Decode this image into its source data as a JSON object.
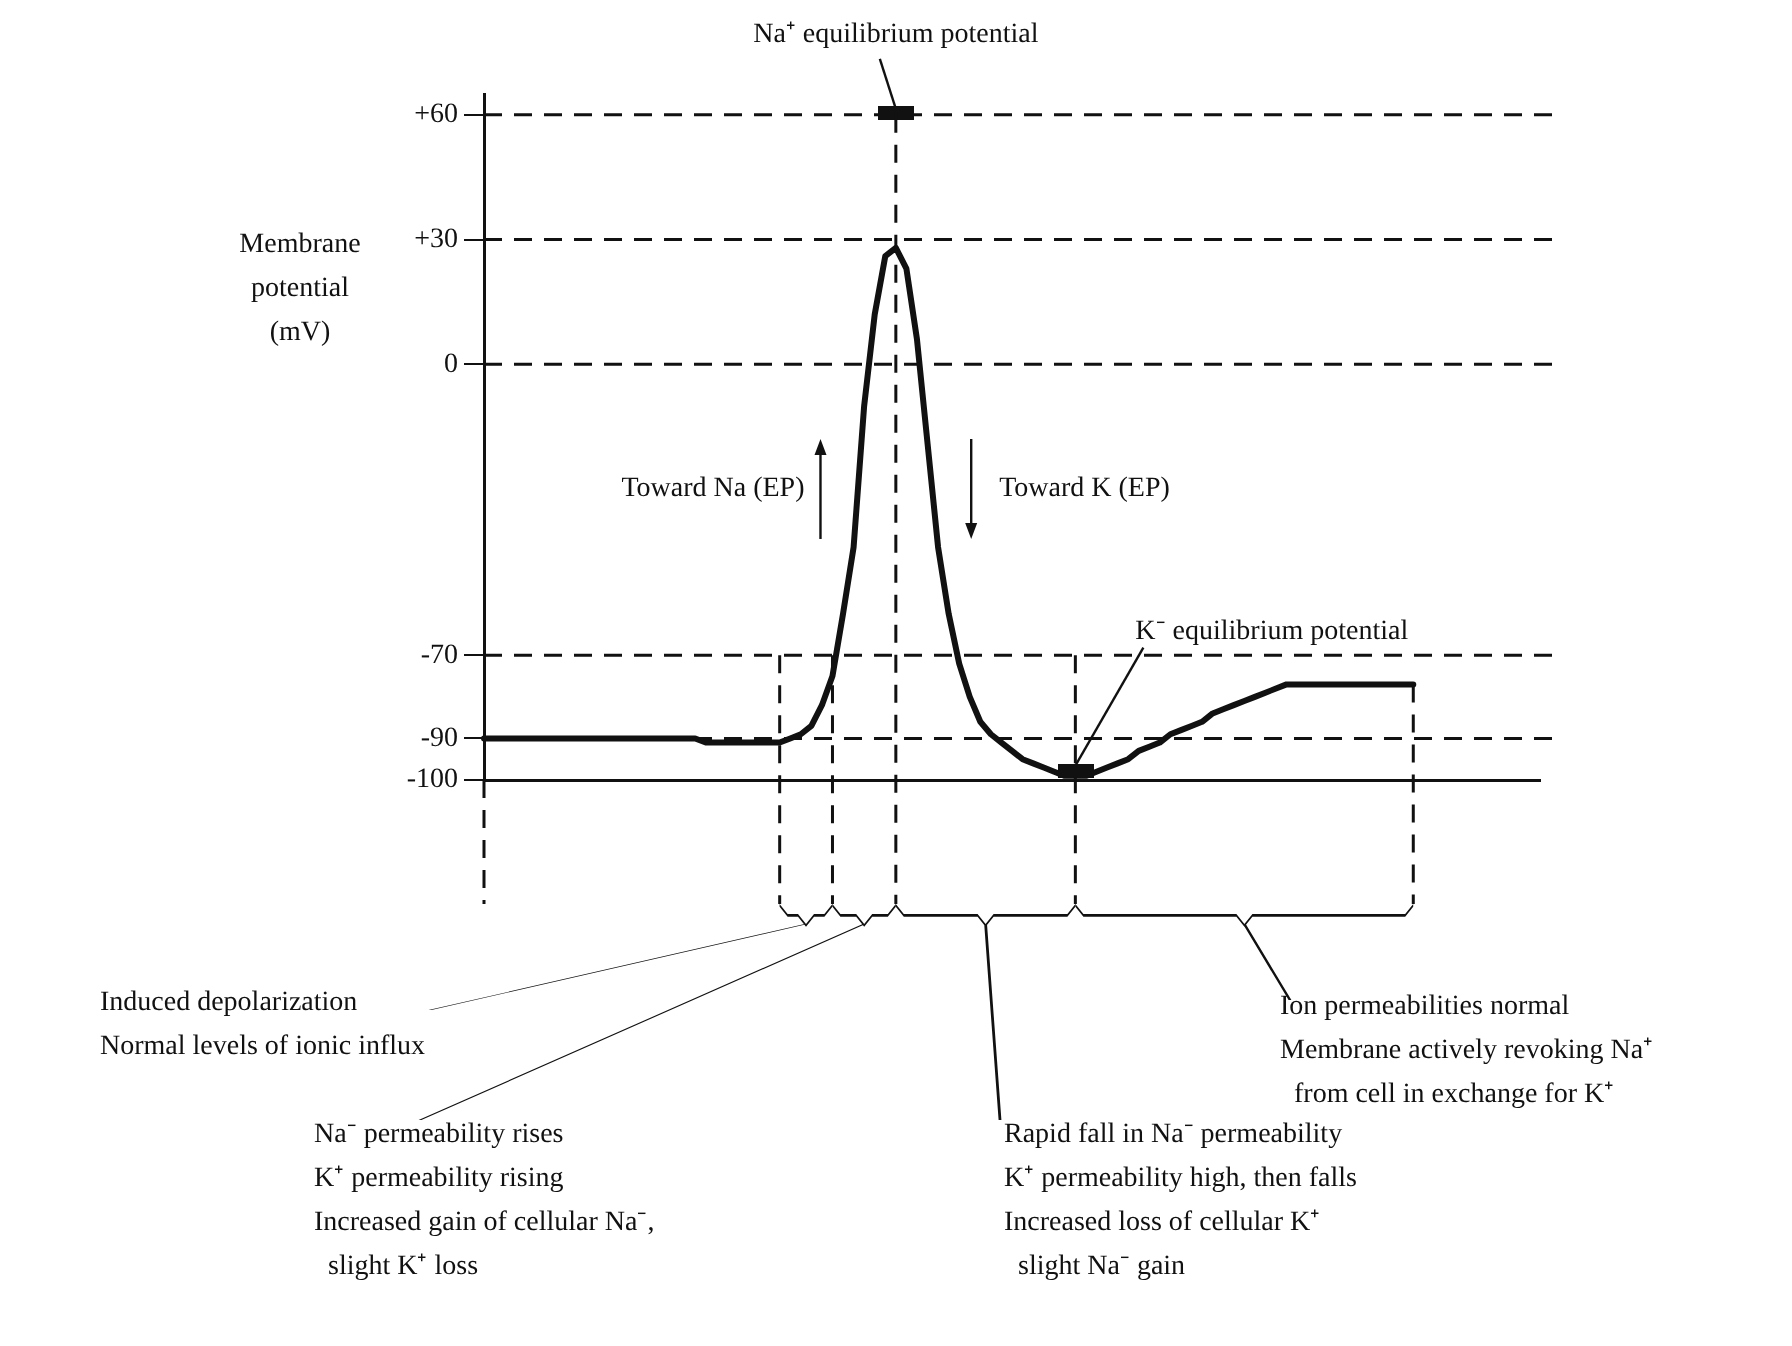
{
  "chart_data": {
    "type": "line",
    "ylabel": "Membrane potential (mV)",
    "tick_labels": "y",
    "legend": false,
    "grid": false,
    "marker": "none",
    "line_style": "solid",
    "categories": [
      null,
      null,
      null,
      null,
      null,
      null,
      null,
      null,
      null,
      null,
      null,
      null,
      null,
      null,
      null,
      null,
      null,
      null,
      null,
      null,
      null,
      null,
      null,
      null,
      null,
      null,
      null,
      null,
      null,
      null,
      null,
      null,
      null,
      null,
      null,
      null,
      null,
      null,
      null,
      null,
      null,
      null,
      null,
      null,
      null,
      null,
      null,
      null,
      null,
      null,
      null,
      null,
      null,
      null,
      null,
      null,
      null,
      null,
      null,
      null,
      null,
      null,
      null,
      null,
      null,
      null,
      null,
      null,
      null,
      null,
      null,
      null,
      null,
      null,
      null,
      null,
      null,
      null,
      null,
      null,
      null,
      null,
      null,
      null,
      null,
      null,
      null,
      null,
      null,
      null,
      null,
      null,
      null,
      null,
      null,
      null,
      null,
      null,
      null,
      null,
      null
    ],
    "ylim": [
      -100,
      65
    ],
    "yticks": [
      {
        "value": 60,
        "label": "+60"
      },
      {
        "value": 30,
        "label": "+30"
      },
      0,
      -70,
      -90,
      -100
    ],
    "series": [
      {
        "color": "#111111",
        "values": [
          -90,
          -90,
          -90,
          -90,
          -90,
          -90,
          -90,
          -90,
          -90,
          -90,
          -90,
          -90,
          -90,
          -90,
          -90,
          -90,
          -90,
          -90,
          -90,
          -90,
          -90,
          -91,
          -91,
          -91,
          -91,
          -91,
          -91,
          -91,
          -91,
          -90,
          -89,
          -87,
          -82,
          -75,
          -60,
          -44,
          -10,
          12,
          26,
          28,
          23,
          6,
          -19,
          -44,
          -60,
          -72,
          -80,
          -86,
          -89,
          -91,
          -93,
          -95,
          -96,
          -97,
          -98,
          -99,
          -99,
          -99,
          -98,
          -97,
          -96,
          -95,
          -93,
          -92,
          -91,
          -89,
          -88,
          -87,
          -86,
          -84,
          -83,
          -82,
          -81,
          -80,
          -79,
          -78,
          -77,
          -77,
          -77,
          -77,
          -77,
          -77,
          -77,
          -77,
          -77,
          -77,
          -77,
          -77,
          -77,
          null,
          null,
          null,
          null,
          null,
          null,
          null,
          null,
          null,
          null,
          null,
          null
        ]
      }
    ],
    "ref_lines": [
      {
        "axis": "y",
        "value": 60,
        "line_style": "dashed",
        "color": "#111111"
      },
      {
        "axis": "y",
        "value": 30,
        "line_style": "dashed",
        "color": "#111111"
      },
      {
        "axis": "y",
        "value": 0,
        "line_style": "dashed",
        "color": "#111111"
      },
      {
        "axis": "y",
        "value": -70,
        "line_style": "dashed",
        "color": "#111111"
      },
      {
        "axis": "y",
        "value": -90,
        "line_style": "dashed",
        "color": "#111111"
      }
    ],
    "annotations": [
      {
        "text": "Na⁺ equilibrium potential",
        "y": 60
      },
      "K⁻ equilibrium potential",
      "Toward Na (EP)",
      "Toward K (EP)",
      "Induced depolarization\nNormal levels of ionic influx",
      "Na⁻ permeability rises\nK⁺ permeability rising\nIncreased gain of cellular Na⁻,\n  slight K⁺ loss",
      "Rapid fall in Na⁻ permeability\nK⁺ permeability high, then falls\nIncreased loss of cellular K⁺\n  slight Na⁻ gain",
      "Ion permeabilities normal\nMembrane actively revoking Na⁺\n  from cell in exchange for K⁺"
    ]
  }
}
